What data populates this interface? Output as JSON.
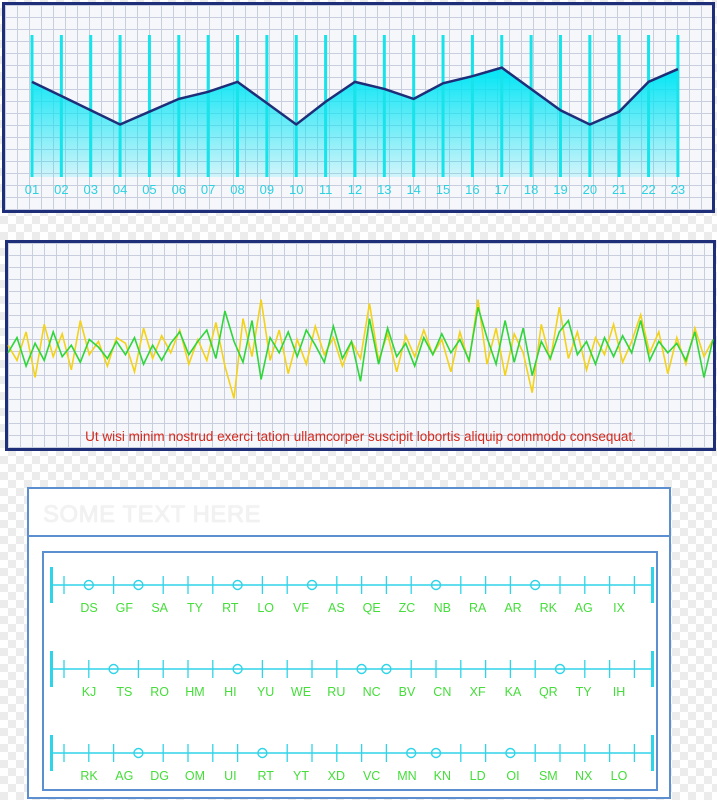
{
  "chart_data": [
    {
      "type": "area",
      "categories": [
        "01",
        "02",
        "03",
        "04",
        "05",
        "06",
        "07",
        "08",
        "09",
        "10",
        "11",
        "12",
        "13",
        "14",
        "15",
        "16",
        "17",
        "18",
        "19",
        "20",
        "21",
        "22",
        "23"
      ],
      "values": [
        6.7,
        5.7,
        4.7,
        3.7,
        4.6,
        5.5,
        6.0,
        6.7,
        5.2,
        3.7,
        5.3,
        6.7,
        6.2,
        5.5,
        6.6,
        7.1,
        7.7,
        6.2,
        4.7,
        3.7,
        4.6,
        6.7,
        7.6
      ],
      "ylim": [
        0,
        10
      ],
      "colors": {
        "fill": "#00e5f5",
        "line": "#1e2e78",
        "bars": "#17e3ea",
        "labels": "#2ed1e0"
      }
    },
    {
      "type": "line",
      "series": [
        {
          "color": "#f3d21a",
          "values": [
            0.2,
            -0.6,
            0.9,
            -1.5,
            1.3,
            -0.4,
            0.8,
            -1.1,
            1.5,
            -0.3,
            0.4,
            -0.9,
            0.6,
            0.3,
            -1.2,
            1.1,
            -0.5,
            0.7,
            -0.2,
            1.0,
            -0.8,
            0.5,
            -0.6,
            1.4,
            -0.9,
            -2.6,
            1.6,
            -0.4,
            2.6,
            -0.6,
            1.0,
            -1.3,
            0.5,
            -0.8,
            1.2,
            -0.3,
            0.6,
            -0.9,
            0.4,
            -0.5,
            2.4,
            -0.6,
            0.8,
            -1.2,
            0.7,
            -0.4,
            1.0,
            -0.3,
            0.5,
            -1.2,
            0.9,
            -0.7,
            2.6,
            -0.8,
            1.1,
            -1.4,
            0.8,
            -0.2,
            -2.3,
            1.3,
            -0.6,
            2.2,
            -0.5,
            0.9,
            -1.1,
            0.6,
            -0.3,
            1.3,
            -0.7,
            0.4,
            1.8,
            -0.2,
            0.9,
            -1.3,
            0.6,
            -0.8,
            1.1,
            -0.4,
            0.5
          ]
        },
        {
          "color": "#2ed63a",
          "values": [
            -0.2,
            0.6,
            -0.9,
            0.3,
            -0.6,
            0.9,
            -0.4,
            0.2,
            -0.7,
            0.5,
            0.1,
            -0.5,
            0.4,
            -0.3,
            0.6,
            -0.8,
            0.2,
            -0.6,
            0.3,
            0.9,
            -0.3,
            0.4,
            1.0,
            -0.5,
            2.0,
            0.4,
            -0.7,
            1.5,
            -1.6,
            0.6,
            -0.2,
            0.9,
            -0.4,
            1.0,
            0.2,
            -0.7,
            1.2,
            -0.5,
            0.4,
            -1.7,
            1.6,
            -0.8,
            1.1,
            -0.4,
            0.3,
            -0.9,
            0.6,
            -0.3,
            0.8,
            -0.2,
            0.5,
            -0.6,
            2.2,
            0.6,
            -0.8,
            1.5,
            -0.7,
            1.1,
            -1.4,
            0.4,
            -0.5,
            0.9,
            1.5,
            -0.3,
            0.4,
            -0.8,
            0.6,
            -0.4,
            0.7,
            -0.2,
            1.5,
            -0.6,
            0.4,
            -0.2,
            0.3,
            -0.6,
            0.9,
            -1.5,
            0.5
          ]
        }
      ],
      "ylim": [
        -3,
        3
      ]
    },
    {
      "type": "timeline",
      "rows": [
        {
          "labels": [
            "DS",
            "GF",
            "SA",
            "TY",
            "RT",
            "LO",
            "VF",
            "AS",
            "QE",
            "ZC",
            "NB",
            "RA",
            "AR",
            "RK",
            "AG",
            "IX"
          ],
          "markers": [
            1,
            3,
            7,
            10,
            15,
            19
          ]
        },
        {
          "labels": [
            "KJ",
            "TS",
            "RO",
            "HM",
            "HI",
            "YU",
            "WE",
            "RU",
            "NC",
            "BV",
            "CN",
            "XF",
            "KA",
            "QR",
            "TY",
            "IH"
          ],
          "markers": [
            2,
            7,
            12,
            13,
            20
          ]
        },
        {
          "labels": [
            "RK",
            "AG",
            "DG",
            "OM",
            "UI",
            "RT",
            "YT",
            "XD",
            "VC",
            "MN",
            "KN",
            "LD",
            "OI",
            "SM",
            "NX",
            "LO"
          ],
          "markers": [
            3,
            8,
            14,
            15,
            18
          ]
        }
      ],
      "colors": {
        "axis": "#2fd4e8",
        "labels": "#45dd3a"
      }
    }
  ],
  "panels": {
    "waves_caption": "Ut wisi minim nostrud exerci tation ullamcorper suscipit lobortis aliquip commodo consequat.",
    "timeline_title": "SOME TEXT HERE"
  }
}
